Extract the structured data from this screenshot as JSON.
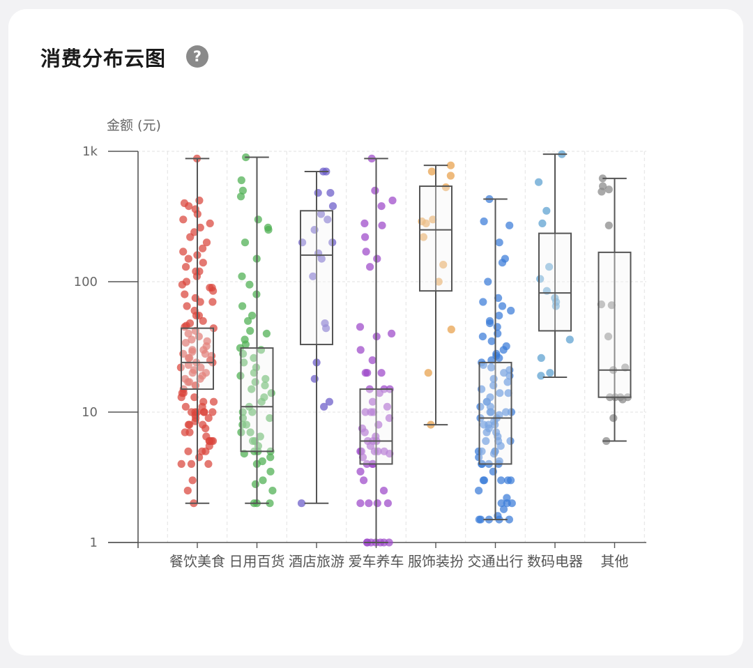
{
  "card": {
    "title": "消费分布云图",
    "help_icon": "question-circle-icon",
    "help_glyph": "?"
  },
  "chart_data": {
    "type": "box",
    "y_scale": "log",
    "ylim": [
      1,
      1000
    ],
    "ylabel": "金额 (元)",
    "yticks": [
      {
        "value": 1,
        "label": "1"
      },
      {
        "value": 10,
        "label": "10"
      },
      {
        "value": 100,
        "label": "100"
      },
      {
        "value": 1000,
        "label": "1k"
      }
    ],
    "grid": true,
    "categories": [
      "餐饮美食",
      "日用百货",
      "酒店旅游",
      "爱车养车",
      "服饰装扮",
      "交通出行",
      "数码电器",
      "其他"
    ],
    "colors": [
      "#d9453b",
      "#4caf50",
      "#6a5ac8",
      "#9c48c9",
      "#e8a04a",
      "#3a7bd8",
      "#5aa0d0",
      "#888888"
    ],
    "series": [
      {
        "category": "餐饮美食",
        "box": {
          "min": 2,
          "q1": 15,
          "median": 24,
          "q3": 44,
          "max": 880
        },
        "points": [
          880,
          420,
          400,
          380,
          360,
          330,
          300,
          280,
          260,
          240,
          220,
          200,
          180,
          170,
          160,
          150,
          140,
          130,
          120,
          110,
          100,
          95,
          90,
          85,
          80,
          75,
          70,
          65,
          60,
          55,
          50,
          48,
          46,
          44,
          42,
          40,
          38,
          36,
          34,
          32,
          30,
          29,
          28,
          27,
          26,
          25,
          24,
          23,
          22,
          21,
          20,
          19,
          18,
          17,
          16,
          15,
          14,
          13,
          12,
          11,
          10,
          10,
          10,
          10,
          9.5,
          9,
          9,
          8.5,
          8,
          8,
          7.5,
          7,
          7,
          6.5,
          6,
          6,
          6,
          5.5,
          5,
          5,
          4.5,
          4,
          4,
          3,
          2.5,
          2,
          30,
          28,
          26,
          24,
          22,
          20,
          18,
          16,
          14,
          12,
          120,
          90,
          70,
          55,
          45,
          35,
          25,
          17,
          13,
          11,
          10,
          10,
          8,
          6,
          5,
          4
        ]
      },
      {
        "category": "日用百货",
        "box": {
          "min": 2,
          "q1": 5,
          "median": 11,
          "q3": 31,
          "max": 900
        },
        "points": [
          900,
          600,
          500,
          450,
          300,
          260,
          250,
          200,
          150,
          110,
          95,
          80,
          65,
          55,
          50,
          42,
          40,
          36,
          33,
          31,
          30,
          28,
          26,
          24,
          22,
          20,
          19,
          18,
          17,
          16,
          15,
          14,
          13,
          12,
          11,
          10,
          10,
          9,
          9,
          8,
          8,
          7,
          7,
          6.5,
          6,
          6,
          5.5,
          5,
          5,
          5,
          4.8,
          4.5,
          4.2,
          4,
          3.5,
          3,
          2.8,
          2.5,
          2,
          2,
          2
        ]
      },
      {
        "category": "酒店旅游",
        "box": {
          "min": 2,
          "q1": 33,
          "median": 160,
          "q3": 350,
          "max": 700
        },
        "points": [
          700,
          700,
          480,
          480,
          380,
          330,
          300,
          250,
          200,
          200,
          165,
          150,
          110,
          48,
          44,
          24,
          18,
          12,
          11,
          2
        ]
      },
      {
        "category": "爱车养车",
        "box": {
          "min": 1,
          "q1": 4,
          "median": 6,
          "q3": 15,
          "max": 880
        },
        "points": [
          880,
          500,
          420,
          380,
          280,
          270,
          220,
          170,
          150,
          130,
          45,
          40,
          38,
          30,
          25,
          20,
          20,
          20,
          15,
          15,
          15,
          14,
          12,
          11,
          10,
          10,
          10,
          9,
          8,
          7.5,
          7,
          6.5,
          6,
          6,
          6,
          5.5,
          5,
          5,
          5,
          5,
          5,
          4.8,
          4.5,
          4,
          4,
          4,
          3.5,
          3,
          2.5,
          2,
          2,
          2,
          2,
          1,
          1,
          1,
          1,
          1,
          1,
          1
        ]
      },
      {
        "category": "服饰装扮",
        "box": {
          "min": 8,
          "q1": 85,
          "median": 250,
          "q3": 540,
          "max": 780
        },
        "points": [
          780,
          700,
          650,
          530,
          300,
          290,
          280,
          220,
          135,
          100,
          43,
          20,
          8
        ]
      },
      {
        "category": "交通出行",
        "box": {
          "min": 1.5,
          "q1": 4,
          "median": 9,
          "q3": 24,
          "max": 430
        },
        "points": [
          430,
          290,
          270,
          200,
          150,
          140,
          100,
          75,
          70,
          65,
          60,
          55,
          50,
          48,
          45,
          40,
          38,
          35,
          32,
          30,
          28,
          27,
          26,
          25,
          24,
          23,
          22,
          21,
          20,
          19,
          18,
          17,
          16,
          15,
          14,
          13,
          12,
          12,
          11,
          11,
          10,
          10,
          10,
          9.5,
          9,
          9,
          8.5,
          8,
          8,
          7.5,
          7,
          7,
          6.5,
          6,
          6,
          5.5,
          5,
          5,
          5,
          5,
          4.8,
          4.5,
          4.2,
          4,
          4,
          4,
          3.5,
          3,
          3,
          3,
          3,
          2.5,
          2.2,
          2,
          2,
          1.8,
          1.6,
          1.5,
          1.5,
          1.5,
          1.5,
          1.5,
          14,
          10,
          8,
          6,
          4,
          3,
          2
        ]
      },
      {
        "category": "数码电器",
        "box": {
          "min": 18.5,
          "q1": 42,
          "median": 82,
          "q3": 235,
          "max": 950
        },
        "points": [
          950,
          580,
          350,
          280,
          130,
          105,
          85,
          75,
          70,
          65,
          36,
          26,
          20,
          19
        ]
      },
      {
        "category": "其他",
        "box": {
          "min": 6,
          "q1": 13,
          "median": 21,
          "q3": 168,
          "max": 620
        },
        "points": [
          620,
          540,
          510,
          490,
          270,
          67,
          66,
          38,
          22,
          21,
          13,
          13,
          13,
          13,
          12.5,
          9,
          6
        ]
      }
    ]
  }
}
